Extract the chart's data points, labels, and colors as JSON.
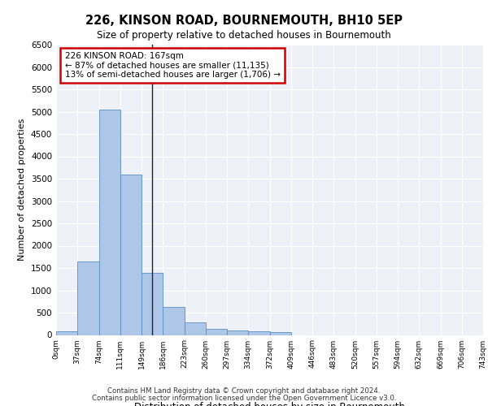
{
  "title": "226, KINSON ROAD, BOURNEMOUTH, BH10 5EP",
  "subtitle": "Size of property relative to detached houses in Bournemouth",
  "xlabel": "Distribution of detached houses by size in Bournemouth",
  "ylabel": "Number of detached properties",
  "footer_line1": "Contains HM Land Registry data © Crown copyright and database right 2024.",
  "footer_line2": "Contains public sector information licensed under the Open Government Licence v3.0.",
  "bin_labels": [
    "0sqm",
    "37sqm",
    "74sqm",
    "111sqm",
    "149sqm",
    "186sqm",
    "223sqm",
    "260sqm",
    "297sqm",
    "334sqm",
    "372sqm",
    "409sqm",
    "446sqm",
    "483sqm",
    "520sqm",
    "557sqm",
    "594sqm",
    "632sqm",
    "669sqm",
    "706sqm",
    "743sqm"
  ],
  "bar_values": [
    75,
    1650,
    5050,
    3600,
    1400,
    620,
    290,
    145,
    105,
    75,
    55,
    0,
    0,
    0,
    0,
    0,
    0,
    0,
    0,
    0
  ],
  "bar_color": "#aec6e8",
  "bar_edge_color": "#5a8fc0",
  "bg_color": "#eef2f8",
  "grid_color": "#ffffff",
  "ylim": [
    0,
    6500
  ],
  "yticks": [
    0,
    500,
    1000,
    1500,
    2000,
    2500,
    3000,
    3500,
    4000,
    4500,
    5000,
    5500,
    6000,
    6500
  ],
  "property_size_sqm": 167,
  "annotation_text": "226 KINSON ROAD: 167sqm\n← 87% of detached houses are smaller (11,135)\n13% of semi-detached houses are larger (1,706) →",
  "annotation_box_color": "#ffffff",
  "annotation_box_edge_color": "#cc0000",
  "vline_color": "#222222",
  "num_bins": 20,
  "fig_bg": "#ffffff"
}
